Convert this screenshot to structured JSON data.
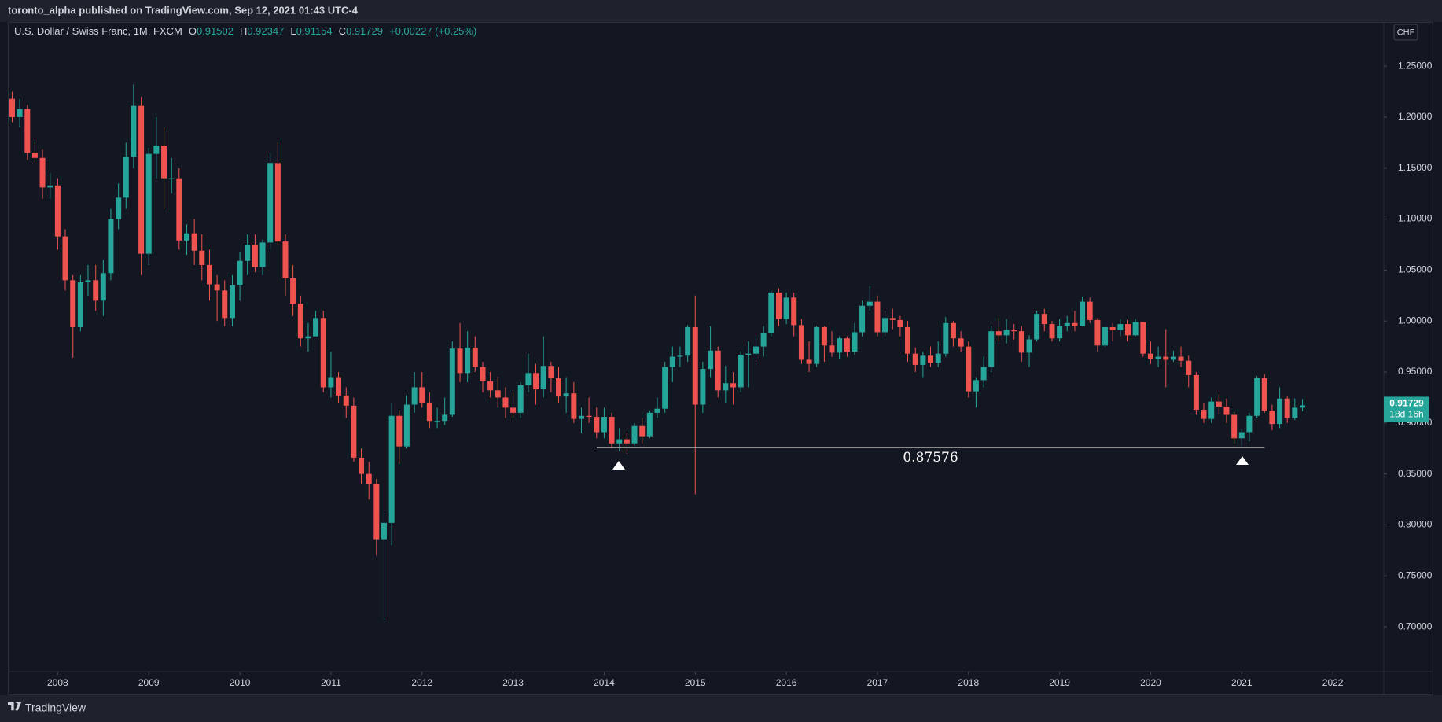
{
  "header": {
    "attribution": "toronto_alpha published on TradingView.com, Sep 12, 2021 01:43 UTC-4"
  },
  "footer": {
    "brand": "TradingView"
  },
  "chart_data": {
    "type": "candlestick",
    "ohlc_labels": [
      "O",
      "H",
      "L",
      "C"
    ],
    "change": "+0.00227 (+0.25%)",
    "currency": "CHF",
    "countdown": "18d 16h",
    "xlim": [
      2007.47,
      2022.56
    ],
    "xticks": [
      2008,
      2009,
      2010,
      2011,
      2012,
      2013,
      2014,
      2015,
      2016,
      2017,
      2018,
      2019,
      2020,
      2021,
      2022
    ],
    "ylim": [
      0.6561,
      1.2933
    ],
    "yticks": [
      {
        "value": 0.7,
        "label": "0.70000"
      },
      {
        "value": 0.75,
        "label": "0.75000"
      },
      {
        "value": 0.8,
        "label": "0.80000"
      },
      {
        "value": 0.85,
        "label": "0.85000"
      },
      {
        "value": 0.9,
        "label": "0.90000"
      },
      {
        "value": 0.95,
        "label": "0.95000"
      },
      {
        "value": 1.0,
        "label": "1.00000"
      },
      {
        "value": 1.05,
        "label": "1.05000"
      },
      {
        "value": 1.1,
        "label": "1.10000"
      },
      {
        "value": 1.15,
        "label": "1.15000"
      },
      {
        "value": 1.2,
        "label": "1.20000"
      },
      {
        "value": 1.25,
        "label": "1.25000"
      }
    ],
    "hline": {
      "value": 0.87576,
      "x": [
        2013.917,
        2021.25
      ],
      "color": "#ffffff"
    },
    "series": [
      {
        "name": "U.S. Dollar / Swiss Franc, 1M, FXCM",
        "up_color": "#26a69a",
        "down_color": "#ef5350",
        "x": [
          2007.5,
          2007.583,
          2007.667,
          2007.75,
          2007.833,
          2007.917,
          2008,
          2008.083,
          2008.167,
          2008.25,
          2008.333,
          2008.417,
          2008.5,
          2008.583,
          2008.667,
          2008.75,
          2008.833,
          2008.917,
          2009,
          2009.083,
          2009.167,
          2009.25,
          2009.333,
          2009.417,
          2009.5,
          2009.583,
          2009.667,
          2009.75,
          2009.833,
          2009.917,
          2010,
          2010.083,
          2010.167,
          2010.25,
          2010.333,
          2010.417,
          2010.5,
          2010.583,
          2010.667,
          2010.75,
          2010.833,
          2010.917,
          2011,
          2011.083,
          2011.167,
          2011.25,
          2011.333,
          2011.417,
          2011.5,
          2011.583,
          2011.667,
          2011.75,
          2011.833,
          2011.917,
          2012,
          2012.083,
          2012.167,
          2012.25,
          2012.333,
          2012.417,
          2012.5,
          2012.583,
          2012.667,
          2012.75,
          2012.833,
          2012.917,
          2013,
          2013.083,
          2013.167,
          2013.25,
          2013.333,
          2013.417,
          2013.5,
          2013.583,
          2013.667,
          2013.75,
          2013.833,
          2013.917,
          2014,
          2014.083,
          2014.167,
          2014.25,
          2014.333,
          2014.417,
          2014.5,
          2014.583,
          2014.667,
          2014.75,
          2014.833,
          2014.917,
          2015,
          2015.083,
          2015.167,
          2015.25,
          2015.333,
          2015.417,
          2015.5,
          2015.583,
          2015.667,
          2015.75,
          2015.833,
          2015.917,
          2016,
          2016.083,
          2016.167,
          2016.25,
          2016.333,
          2016.417,
          2016.5,
          2016.583,
          2016.667,
          2016.75,
          2016.833,
          2016.917,
          2017,
          2017.083,
          2017.167,
          2017.25,
          2017.333,
          2017.417,
          2017.5,
          2017.583,
          2017.667,
          2017.75,
          2017.833,
          2017.917,
          2018,
          2018.083,
          2018.167,
          2018.25,
          2018.333,
          2018.417,
          2018.5,
          2018.583,
          2018.667,
          2018.75,
          2018.833,
          2018.917,
          2019,
          2019.083,
          2019.167,
          2019.25,
          2019.333,
          2019.417,
          2019.5,
          2019.583,
          2019.667,
          2019.75,
          2019.833,
          2019.917,
          2020,
          2020.083,
          2020.167,
          2020.25,
          2020.333,
          2020.417,
          2020.5,
          2020.583,
          2020.667,
          2020.75,
          2020.833,
          2020.917,
          2021,
          2021.083,
          2021.167,
          2021.25,
          2021.333,
          2021.417,
          2021.5,
          2021.583,
          2021.667
        ],
        "open": [
          1.218,
          1.2,
          1.208,
          1.165,
          1.16,
          1.131,
          1.133,
          1.083,
          1.04,
          0.994,
          1.038,
          1.04,
          1.02,
          1.047,
          1.1,
          1.121,
          1.161,
          1.211,
          1.066,
          1.164,
          1.172,
          1.14,
          1.14,
          1.079,
          1.086,
          1.069,
          1.055,
          1.036,
          1.03,
          1.003,
          1.035,
          1.059,
          1.075,
          1.053,
          1.077,
          1.155,
          1.078,
          1.042,
          1.017,
          0.983,
          0.985,
          1.003,
          0.935,
          0.945,
          0.927,
          0.917,
          0.866,
          0.85,
          0.84,
          0.786,
          0.802,
          0.907,
          0.877,
          0.918,
          0.935,
          0.92,
          0.902,
          0.902,
          0.908,
          0.973,
          0.949,
          0.974,
          0.955,
          0.941,
          0.932,
          0.925,
          0.915,
          0.91,
          0.937,
          0.949,
          0.933,
          0.956,
          0.944,
          0.926,
          0.929,
          0.904,
          0.907,
          0.906,
          0.891,
          0.906,
          0.88,
          0.884,
          0.88,
          0.897,
          0.887,
          0.91,
          0.914,
          0.955,
          0.965,
          0.966,
          0.994,
          0.918,
          0.953,
          0.971,
          0.932,
          0.939,
          0.935,
          0.967,
          0.968,
          0.975,
          0.988,
          1.028,
          1.002,
          1.023,
          0.996,
          0.962,
          0.958,
          0.994,
          0.976,
          0.969,
          0.983,
          0.97,
          0.989,
          1.015,
          1.019,
          0.989,
          1.003,
          1.001,
          0.994,
          0.968,
          0.957,
          0.966,
          0.959,
          0.968,
          0.998,
          0.983,
          0.975,
          0.931,
          0.942,
          0.955,
          0.99,
          0.986,
          0.991,
          0.99,
          0.969,
          0.982,
          1.007,
          0.997,
          0.983,
          0.995,
          0.998,
          0.995,
          1.019,
          1.001,
          0.976,
          0.994,
          0.991,
          0.997,
          0.986,
          0.999,
          0.968,
          0.963,
          0.965,
          0.962,
          0.965,
          0.961,
          0.947,
          0.913,
          0.904,
          0.921,
          0.916,
          0.908,
          0.885,
          0.891,
          0.907,
          0.944,
          0.912,
          0.899,
          0.924,
          0.905,
          0.91502
        ],
        "high": [
          1.225,
          1.218,
          1.212,
          1.175,
          1.168,
          1.145,
          1.14,
          1.09,
          1.045,
          1.045,
          1.055,
          1.055,
          1.06,
          1.11,
          1.135,
          1.175,
          1.232,
          1.22,
          1.17,
          1.2,
          1.19,
          1.16,
          1.15,
          1.095,
          1.1,
          1.085,
          1.07,
          1.045,
          1.04,
          1.045,
          1.068,
          1.085,
          1.085,
          1.08,
          1.165,
          1.175,
          1.085,
          1.055,
          1.025,
          0.998,
          1.01,
          1.01,
          0.97,
          0.95,
          0.935,
          0.925,
          0.875,
          0.862,
          0.845,
          0.812,
          0.92,
          0.913,
          0.927,
          0.95,
          0.95,
          0.93,
          0.915,
          0.925,
          0.98,
          0.998,
          0.99,
          0.985,
          0.96,
          0.95,
          0.945,
          0.935,
          0.93,
          0.94,
          0.968,
          0.958,
          0.985,
          0.96,
          0.955,
          0.945,
          0.94,
          0.915,
          0.925,
          0.915,
          0.915,
          0.91,
          0.895,
          0.89,
          0.9,
          0.905,
          0.912,
          0.925,
          0.96,
          0.975,
          0.975,
          0.996,
          1.025,
          0.96,
          0.995,
          0.975,
          0.956,
          0.95,
          0.97,
          0.98,
          0.986,
          0.995,
          1.03,
          1.032,
          1.028,
          1.028,
          1.002,
          0.98,
          0.995,
          0.995,
          0.99,
          0.985,
          0.985,
          0.998,
          1.02,
          1.034,
          1.025,
          1.01,
          1.012,
          1.005,
          1.0,
          0.974,
          0.97,
          0.975,
          0.98,
          1.004,
          1.0,
          0.99,
          0.98,
          0.945,
          0.965,
          0.995,
          1.003,
          1.002,
          0.997,
          0.995,
          0.986,
          1.01,
          1.012,
          1.0,
          1.002,
          1.005,
          1.01,
          1.024,
          1.023,
          1.003,
          1.0,
          0.998,
          1.002,
          1.001,
          1.002,
          0.999,
          0.98,
          0.975,
          0.992,
          0.971,
          0.975,
          0.966,
          0.95,
          0.92,
          0.925,
          0.928,
          0.924,
          0.911,
          0.894,
          0.91,
          0.946,
          0.948,
          0.918,
          0.935,
          0.926,
          0.924,
          0.92347
        ],
        "low": [
          1.195,
          1.19,
          1.158,
          1.155,
          1.12,
          1.12,
          1.07,
          1.03,
          0.964,
          0.99,
          1.025,
          1.01,
          1.005,
          1.04,
          1.09,
          1.11,
          1.15,
          1.045,
          1.055,
          1.14,
          1.11,
          1.125,
          1.07,
          1.065,
          1.055,
          1.04,
          1.02,
          1.0,
          0.995,
          0.995,
          1.02,
          1.045,
          1.048,
          1.045,
          1.07,
          1.075,
          1.025,
          1.005,
          0.975,
          0.97,
          0.985,
          0.93,
          0.925,
          0.92,
          0.905,
          0.862,
          0.84,
          0.825,
          0.77,
          0.707,
          0.78,
          0.86,
          0.875,
          0.91,
          0.915,
          0.895,
          0.895,
          0.898,
          0.906,
          0.94,
          0.94,
          0.95,
          0.93,
          0.925,
          0.915,
          0.905,
          0.905,
          0.905,
          0.93,
          0.918,
          0.925,
          0.93,
          0.92,
          0.91,
          0.9,
          0.89,
          0.9,
          0.885,
          0.885,
          0.875,
          0.872,
          0.87,
          0.878,
          0.88,
          0.885,
          0.905,
          0.91,
          0.94,
          0.955,
          0.96,
          0.83,
          0.91,
          0.945,
          0.925,
          0.92,
          0.918,
          0.93,
          0.935,
          0.96,
          0.965,
          0.985,
          0.995,
          0.997,
          0.985,
          0.958,
          0.95,
          0.955,
          0.96,
          0.965,
          0.963,
          0.965,
          0.967,
          0.985,
          1.01,
          0.985,
          0.985,
          0.992,
          0.985,
          0.96,
          0.95,
          0.945,
          0.955,
          0.955,
          0.965,
          0.975,
          0.97,
          0.925,
          0.915,
          0.935,
          0.95,
          0.98,
          0.978,
          0.982,
          0.96,
          0.955,
          0.98,
          0.99,
          0.98,
          0.98,
          0.99,
          0.99,
          0.995,
          0.998,
          0.97,
          0.975,
          0.98,
          0.985,
          0.98,
          0.985,
          0.965,
          0.958,
          0.955,
          0.935,
          0.96,
          0.955,
          0.935,
          0.908,
          0.9,
          0.9,
          0.908,
          0.9,
          0.88,
          0.877,
          0.882,
          0.905,
          0.91,
          0.893,
          0.895,
          0.9,
          0.903,
          0.91154
        ],
        "close": [
          1.2,
          1.208,
          1.165,
          1.16,
          1.131,
          1.133,
          1.083,
          1.04,
          0.994,
          1.038,
          1.04,
          1.02,
          1.047,
          1.1,
          1.121,
          1.161,
          1.211,
          1.066,
          1.164,
          1.172,
          1.14,
          1.14,
          1.079,
          1.086,
          1.069,
          1.055,
          1.036,
          1.03,
          1.003,
          1.035,
          1.059,
          1.075,
          1.053,
          1.077,
          1.155,
          1.078,
          1.042,
          1.017,
          0.983,
          0.985,
          1.003,
          0.935,
          0.945,
          0.927,
          0.917,
          0.866,
          0.85,
          0.84,
          0.786,
          0.802,
          0.907,
          0.877,
          0.918,
          0.935,
          0.92,
          0.902,
          0.902,
          0.908,
          0.973,
          0.949,
          0.974,
          0.955,
          0.941,
          0.932,
          0.925,
          0.915,
          0.91,
          0.937,
          0.949,
          0.933,
          0.956,
          0.944,
          0.926,
          0.929,
          0.904,
          0.907,
          0.906,
          0.891,
          0.906,
          0.88,
          0.884,
          0.88,
          0.897,
          0.887,
          0.91,
          0.914,
          0.955,
          0.965,
          0.966,
          0.994,
          0.918,
          0.953,
          0.971,
          0.932,
          0.939,
          0.935,
          0.967,
          0.968,
          0.975,
          0.988,
          1.028,
          1.002,
          1.023,
          0.996,
          0.962,
          0.958,
          0.994,
          0.976,
          0.969,
          0.983,
          0.97,
          0.989,
          1.015,
          1.019,
          0.989,
          1.003,
          1.001,
          0.994,
          0.968,
          0.957,
          0.966,
          0.959,
          0.968,
          0.998,
          0.983,
          0.975,
          0.931,
          0.942,
          0.955,
          0.99,
          0.986,
          0.991,
          0.99,
          0.969,
          0.982,
          1.007,
          0.997,
          0.983,
          0.995,
          0.998,
          0.995,
          1.019,
          1.001,
          0.976,
          0.994,
          0.991,
          0.997,
          0.986,
          0.999,
          0.968,
          0.963,
          0.965,
          0.962,
          0.965,
          0.961,
          0.947,
          0.913,
          0.904,
          0.921,
          0.916,
          0.908,
          0.885,
          0.891,
          0.907,
          0.944,
          0.912,
          0.899,
          0.924,
          0.905,
          0.915,
          0.91729
        ]
      }
    ]
  }
}
